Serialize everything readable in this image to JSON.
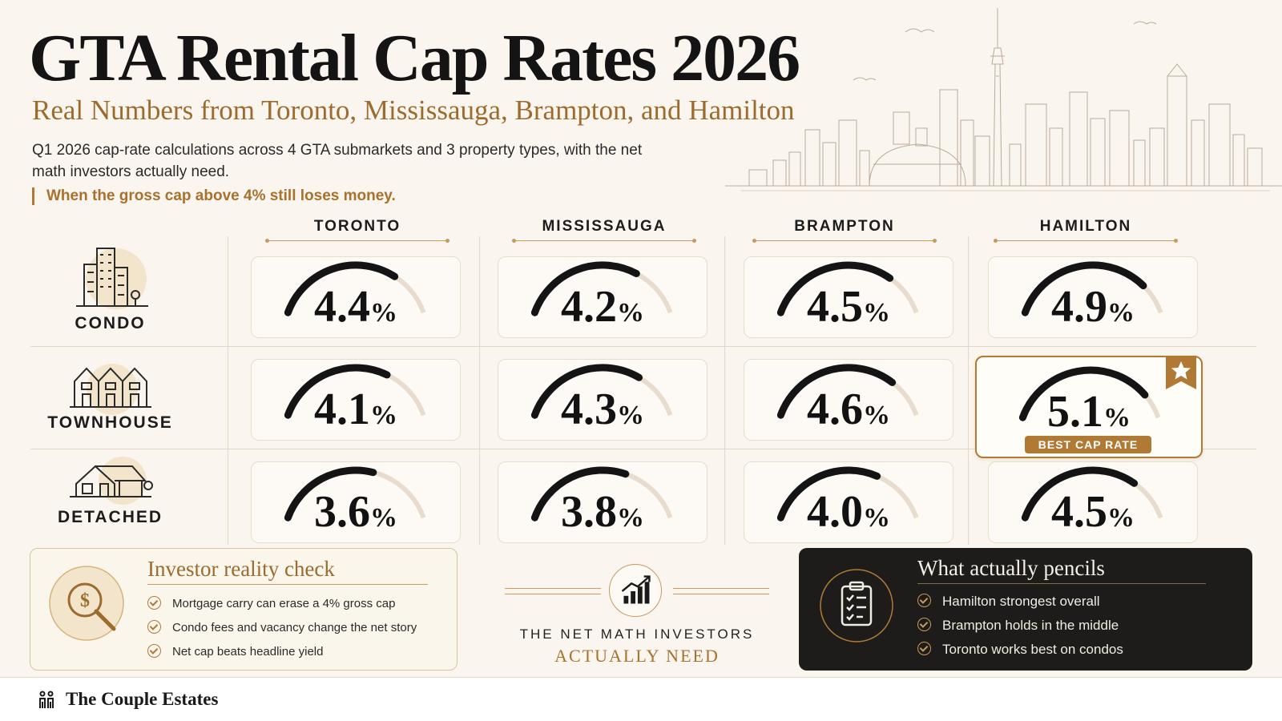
{
  "header": {
    "title": "GTA Rental Cap Rates 2026",
    "subtitle": "Real Numbers from Toronto, Mississauga, Brampton, and Hamilton",
    "description": "Q1 2026 cap-rate calculations across 4 GTA submarkets and 3 property types, with the net math investors actually need.",
    "callout": "When the gross cap above 4% still loses money."
  },
  "chart_data": {
    "type": "table",
    "categories": [
      "TORONTO",
      "MISSISSAUGA",
      "BRAMPTON",
      "HAMILTON"
    ],
    "series": [
      {
        "name": "CONDO",
        "values": [
          4.4,
          4.2,
          4.5,
          4.9
        ]
      },
      {
        "name": "TOWNHOUSE",
        "values": [
          4.1,
          4.3,
          4.6,
          5.1
        ]
      },
      {
        "name": "DETACHED",
        "values": [
          3.6,
          3.8,
          4.0,
          4.5
        ]
      }
    ],
    "unit": "%",
    "highlight": {
      "row": 1,
      "col": 3,
      "label": "BEST CAP RATE"
    }
  },
  "left_card": {
    "title": "Investor reality check",
    "items": [
      "Mortgage carry can erase a 4% gross cap",
      "Condo fees and vacancy change the net story",
      "Net cap beats headline yield"
    ]
  },
  "center": {
    "line1": "THE NET MATH INVESTORS",
    "line2": "ACTUALLY NEED"
  },
  "right_card": {
    "title": "What actually pencils",
    "items": [
      "Hamilton strongest overall",
      "Brampton holds in the middle",
      "Toronto works best on condos"
    ]
  },
  "footer": {
    "brand": "The Couple Estates"
  },
  "colors": {
    "accent": "#b07a35",
    "dark": "#1d1c1a",
    "gauge_track": "#e7dccd",
    "gauge_fill": "#141414",
    "background": "#faf6ef"
  }
}
